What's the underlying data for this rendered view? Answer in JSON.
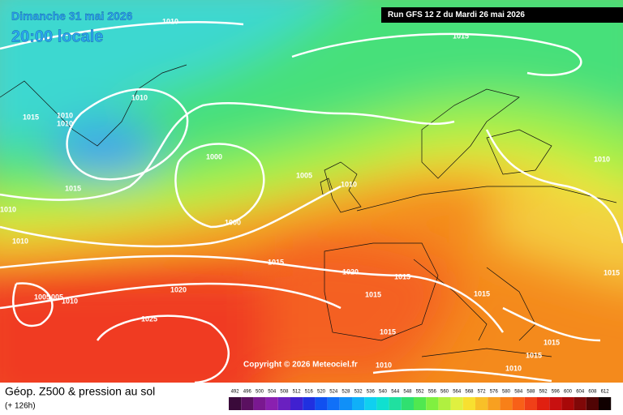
{
  "header": {
    "date": "Dimanche 31 mai 2026",
    "time": "20:00 locale",
    "run": "Run GFS 12 Z du Mardi 26 mai 2026"
  },
  "copyright": "Copyright © 2026 Meteociel.fr",
  "footer": {
    "title": "Géop. Z500 & pression au sol",
    "lead": "(+ 126h)"
  },
  "isobar_labels": [
    "1010",
    "1015",
    "1010",
    "1015",
    "1010",
    "1010",
    "1000",
    "1005",
    "1010",
    "1015",
    "1010",
    "1010",
    "1000",
    "1010",
    "1015",
    "1020",
    "1015",
    "1015",
    "1020",
    "1005",
    "1005",
    "1010",
    "1015",
    "1015",
    "1025",
    "1015",
    "1015",
    "1015",
    "1010",
    "1010"
  ],
  "scale": [
    "492",
    "496",
    "500",
    "504",
    "508",
    "512",
    "516",
    "520",
    "524",
    "528",
    "532",
    "536",
    "540",
    "544",
    "548",
    "552",
    "556",
    "560",
    "564",
    "568",
    "572",
    "576",
    "580",
    "584",
    "588",
    "592",
    "596",
    "600",
    "604",
    "608",
    "612"
  ]
}
